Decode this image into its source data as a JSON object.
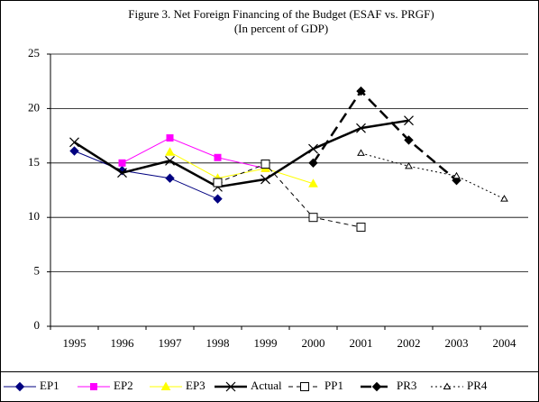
{
  "chart_data": {
    "type": "line",
    "title": "Figure 3. Net Foreign Financing of the Budget (ESAF vs. PRGF)",
    "subtitle": "(In percent of GDP)",
    "categories": [
      "1995",
      "1996",
      "1997",
      "1998",
      "1999",
      "2000",
      "2001",
      "2002",
      "2003",
      "2004"
    ],
    "ylim": [
      0,
      25
    ],
    "yticks": [
      0,
      5,
      10,
      15,
      20,
      25
    ],
    "grid": true,
    "legend": "bottom",
    "series": [
      {
        "name": "EP1",
        "color": "#000080",
        "marker": "diamond",
        "line_style": "solid",
        "line_width": 1,
        "values": [
          16.1,
          14.3,
          13.6,
          11.7,
          null,
          null,
          null,
          null,
          null,
          null
        ]
      },
      {
        "name": "EP2",
        "color": "#ff00ff",
        "marker": "square",
        "line_style": "solid",
        "line_width": 1,
        "values": [
          null,
          15.0,
          17.3,
          15.5,
          14.5,
          null,
          null,
          null,
          null,
          null
        ]
      },
      {
        "name": "EP3",
        "color": "#ffff00",
        "marker": "triangle",
        "line_style": "solid",
        "line_width": 1,
        "values": [
          null,
          null,
          16.0,
          13.6,
          14.5,
          13.1,
          null,
          null,
          null,
          null
        ]
      },
      {
        "name": "Actual",
        "color": "#000000",
        "marker": "x",
        "line_style": "solid",
        "line_width": 2.5,
        "values": [
          16.9,
          14.1,
          15.2,
          12.8,
          13.5,
          16.3,
          18.2,
          18.9,
          null,
          null
        ]
      },
      {
        "name": "PP1",
        "color": "#000000",
        "marker": "open-square",
        "line_style": "dashed",
        "line_width": 1,
        "values": [
          null,
          null,
          null,
          13.2,
          14.9,
          10.0,
          9.1,
          null,
          null,
          null
        ]
      },
      {
        "name": "PR3",
        "color": "#000000",
        "marker": "diamond",
        "line_style": "long-dashed",
        "line_width": 2.5,
        "values": [
          null,
          null,
          null,
          null,
          null,
          15.0,
          21.6,
          17.1,
          13.4,
          null
        ]
      },
      {
        "name": "PR4",
        "color": "#000000",
        "marker": "open-triangle",
        "line_style": "dotted",
        "line_width": 1,
        "values": [
          null,
          null,
          null,
          null,
          null,
          null,
          15.9,
          14.7,
          13.8,
          11.7
        ]
      }
    ]
  }
}
